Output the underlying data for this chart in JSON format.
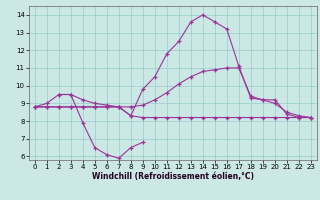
{
  "xlabel": "Windchill (Refroidissement éolien,°C)",
  "background_color": "#cce8e4",
  "line_color": "#993399",
  "grid_color": "#99cccc",
  "xlim": [
    -0.5,
    23.5
  ],
  "ylim": [
    5.8,
    14.5
  ],
  "yticks": [
    6,
    7,
    8,
    9,
    10,
    11,
    12,
    13,
    14
  ],
  "xticks": [
    0,
    1,
    2,
    3,
    4,
    5,
    6,
    7,
    8,
    9,
    10,
    11,
    12,
    13,
    14,
    15,
    16,
    17,
    18,
    19,
    20,
    21,
    22,
    23
  ],
  "line1_x": [
    0,
    1,
    2,
    3,
    4,
    5,
    6,
    7,
    8,
    9,
    10,
    11,
    12,
    13,
    14,
    15,
    16,
    17,
    18,
    19,
    20,
    21,
    22,
    23
  ],
  "line1_y": [
    8.8,
    9.0,
    9.5,
    9.5,
    9.2,
    9.0,
    8.9,
    8.8,
    8.3,
    9.8,
    10.5,
    11.8,
    12.5,
    13.6,
    14.0,
    13.6,
    13.2,
    11.1,
    9.3,
    9.2,
    9.2,
    8.4,
    8.2,
    8.2
  ],
  "line2_x": [
    0,
    1,
    2,
    3,
    4,
    5,
    6,
    7,
    8,
    9,
    10,
    11,
    12,
    13,
    14,
    15,
    16,
    17,
    18,
    19,
    20,
    21,
    22,
    23
  ],
  "line2_y": [
    8.8,
    8.8,
    8.8,
    8.8,
    8.8,
    8.8,
    8.8,
    8.8,
    8.8,
    8.9,
    9.2,
    9.6,
    10.1,
    10.5,
    10.8,
    10.9,
    11.0,
    11.0,
    9.4,
    9.2,
    9.0,
    8.5,
    8.3,
    8.2
  ],
  "line3_x": [
    0,
    1,
    2,
    3,
    4,
    5,
    6,
    7,
    8,
    9,
    10,
    11,
    12,
    13,
    14,
    15,
    16,
    17,
    18,
    19,
    20,
    21,
    22,
    23
  ],
  "line3_y": [
    8.8,
    8.8,
    8.8,
    8.8,
    8.8,
    8.8,
    8.8,
    8.8,
    8.3,
    8.2,
    8.2,
    8.2,
    8.2,
    8.2,
    8.2,
    8.2,
    8.2,
    8.2,
    8.2,
    8.2,
    8.2,
    8.2,
    8.2,
    8.2
  ],
  "line4_x": [
    2,
    3,
    4,
    5,
    6,
    7,
    8,
    9
  ],
  "line4_y": [
    9.5,
    9.5,
    7.9,
    6.5,
    6.1,
    5.9,
    6.5,
    6.8
  ],
  "xlabel_fontsize": 5.5,
  "tick_fontsize": 5.0
}
